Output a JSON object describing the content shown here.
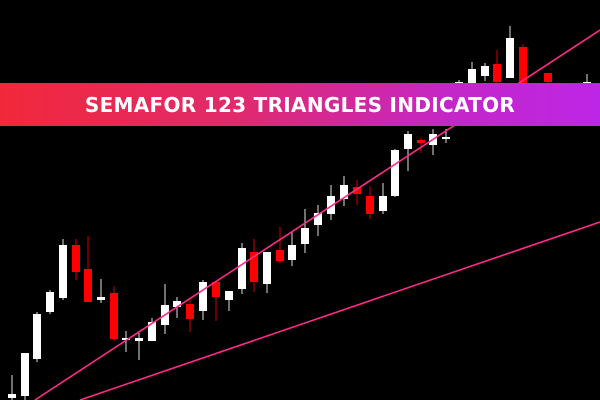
{
  "banner": {
    "title": "SEMAFOR 123 TRIANGLES INDICATOR"
  },
  "colors": {
    "background": "#000000",
    "bull": "#ffffff",
    "bear": "#ff0000",
    "trendline": "#ff2a8a",
    "banner_start": "#f2283a",
    "banner_end": "#bd26e6"
  },
  "chart_data": {
    "type": "candlestick",
    "title": "",
    "xlabel": "",
    "ylabel": "",
    "axes_visible": false,
    "grid": false,
    "ylim": [
      0,
      400
    ],
    "candles": [
      {
        "o": 2,
        "c": 6,
        "h": 25,
        "l": 0
      },
      {
        "o": 4,
        "c": 47,
        "h": 47,
        "l": 0
      },
      {
        "o": 41,
        "c": 86,
        "h": 88,
        "l": 38
      },
      {
        "o": 88,
        "c": 108,
        "h": 110,
        "l": 86
      },
      {
        "o": 102,
        "c": 155,
        "h": 161,
        "l": 100
      },
      {
        "o": 155,
        "c": 128,
        "h": 161,
        "l": 120
      },
      {
        "o": 131,
        "c": 98,
        "h": 164,
        "l": 98
      },
      {
        "o": 100,
        "c": 103,
        "h": 121,
        "l": 97
      },
      {
        "o": 107,
        "c": 61,
        "h": 114,
        "l": 59
      },
      {
        "o": 60,
        "c": 62,
        "h": 69,
        "l": 48
      },
      {
        "o": 59,
        "c": 62,
        "h": 67,
        "l": 40
      },
      {
        "o": 59,
        "c": 78,
        "h": 82,
        "l": 59
      },
      {
        "o": 75,
        "c": 95,
        "h": 116,
        "l": 66
      },
      {
        "o": 93,
        "c": 99,
        "h": 103,
        "l": 82
      },
      {
        "o": 96,
        "c": 81,
        "h": 102,
        "l": 68
      },
      {
        "o": 89,
        "c": 118,
        "h": 120,
        "l": 80
      },
      {
        "o": 118,
        "c": 103,
        "h": 118,
        "l": 79
      },
      {
        "o": 100,
        "c": 109,
        "h": 109,
        "l": 89
      },
      {
        "o": 111,
        "c": 152,
        "h": 157,
        "l": 106
      },
      {
        "o": 148,
        "c": 118,
        "h": 161,
        "l": 108
      },
      {
        "o": 116,
        "c": 148,
        "h": 148,
        "l": 107
      },
      {
        "o": 150,
        "c": 139,
        "h": 173,
        "l": 137
      },
      {
        "o": 140,
        "c": 155,
        "h": 168,
        "l": 134
      },
      {
        "o": 156,
        "c": 172,
        "h": 191,
        "l": 147
      },
      {
        "o": 175,
        "c": 187,
        "h": 195,
        "l": 164
      },
      {
        "o": 186,
        "c": 204,
        "h": 215,
        "l": 180
      },
      {
        "o": 201,
        "c": 215,
        "h": 224,
        "l": 194
      },
      {
        "o": 213,
        "c": 206,
        "h": 220,
        "l": 195
      },
      {
        "o": 204,
        "c": 186,
        "h": 214,
        "l": 181
      },
      {
        "o": 189,
        "c": 204,
        "h": 217,
        "l": 186
      },
      {
        "o": 204,
        "c": 250,
        "h": 251,
        "l": 203
      },
      {
        "o": 251,
        "c": 266,
        "h": 269,
        "l": 229
      },
      {
        "o": 260,
        "c": 257,
        "h": 262,
        "l": 247
      },
      {
        "o": 255,
        "c": 266,
        "h": 271,
        "l": 245
      },
      {
        "o": 262,
        "c": 263,
        "h": 271,
        "l": 257
      },
      {
        "o": 317,
        "c": 318,
        "h": 320,
        "l": 317
      },
      {
        "o": 317,
        "c": 331,
        "h": 338,
        "l": 316
      },
      {
        "o": 324,
        "c": 334,
        "h": 337,
        "l": 319
      },
      {
        "o": 336,
        "c": 318,
        "h": 350,
        "l": 317
      },
      {
        "o": 322,
        "c": 362,
        "h": 374,
        "l": 322
      },
      {
        "o": 353,
        "c": 317,
        "h": 356,
        "l": 317
      },
      {
        "o": 327,
        "c": 318,
        "h": 327,
        "l": 317
      },
      {
        "o": 317,
        "c": 318,
        "h": 326,
        "l": 317
      }
    ],
    "trendlines": [
      {
        "from": [
          0,
          0
        ],
        "to": [
          1,
          370
        ]
      },
      {
        "from": [
          0,
          0
        ],
        "to": [
          1,
          178
        ]
      }
    ]
  }
}
